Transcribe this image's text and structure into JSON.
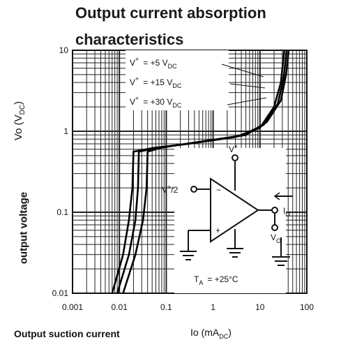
{
  "chart_data": {
    "type": "line",
    "title_line1": "Output current absorption",
    "title_line2": "characteristics",
    "ylabel": "output voltage",
    "yunit": "Vo (V",
    "yunit_sub": "DC",
    "yunit_end": ")",
    "xlabel": "Output suction current",
    "xunit": "Io (mA",
    "xunit_sub": "DC",
    "xunit_end": ")",
    "x_scale": "log",
    "y_scale": "log",
    "xlim": [
      0.001,
      100
    ],
    "ylim": [
      0.01,
      10
    ],
    "grid": true,
    "x_ticks": [
      "0.001",
      "0.01",
      "0.1",
      "1",
      "10",
      "100"
    ],
    "y_ticks": [
      "0.01",
      "0.1",
      "1",
      "10"
    ],
    "series": [
      {
        "points": [
          [
            0.007,
            0.01
          ],
          [
            0.012,
            0.03
          ],
          [
            0.016,
            0.08
          ],
          [
            0.019,
            0.2
          ],
          [
            0.02,
            0.56
          ],
          [
            0.05,
            0.62
          ],
          [
            0.3,
            0.7
          ],
          [
            3,
            0.85
          ],
          [
            10,
            1.1
          ],
          [
            20,
            2
          ],
          [
            28,
            4
          ],
          [
            33,
            10
          ]
        ]
      },
      {
        "points": [
          [
            0.009,
            0.01
          ],
          [
            0.016,
            0.03
          ],
          [
            0.022,
            0.08
          ],
          [
            0.025,
            0.2
          ],
          [
            0.026,
            0.56
          ],
          [
            0.06,
            0.62
          ],
          [
            0.4,
            0.72
          ],
          [
            4,
            0.88
          ],
          [
            12,
            1.2
          ],
          [
            24,
            2.2
          ],
          [
            32,
            4.5
          ],
          [
            37,
            10
          ]
        ]
      },
      {
        "points": [
          [
            0.012,
            0.01
          ],
          [
            0.022,
            0.03
          ],
          [
            0.032,
            0.08
          ],
          [
            0.038,
            0.2
          ],
          [
            0.04,
            0.56
          ],
          [
            0.08,
            0.63
          ],
          [
            0.5,
            0.74
          ],
          [
            5,
            0.9
          ],
          [
            14,
            1.3
          ],
          [
            28,
            2.4
          ],
          [
            36,
            5
          ],
          [
            41,
            10
          ]
        ]
      }
    ],
    "annotations": {
      "curve_labels": [
        {
          "prefix": "V",
          "sup": "+",
          "value": "= +5 V",
          "sub": "DC"
        },
        {
          "prefix": "V",
          "sup": "+",
          "value": "= +15 V",
          "sub": "DC"
        },
        {
          "prefix": "V",
          "sup": "+",
          "value": "= +30 V",
          "sub": "DC"
        }
      ],
      "circuit_vplus": "V",
      "circuit_vplus_sup": "+",
      "circuit_input": "V",
      "circuit_input_sup": "+",
      "circuit_input_tail": "/2",
      "circuit_io": "I",
      "circuit_io_sub": "O",
      "circuit_vo": "V",
      "circuit_vo_sub": "O",
      "minus": "−",
      "plus": "+",
      "ta_prefix": "T",
      "ta_sub": "A",
      "ta_value": "= +25°C"
    }
  }
}
